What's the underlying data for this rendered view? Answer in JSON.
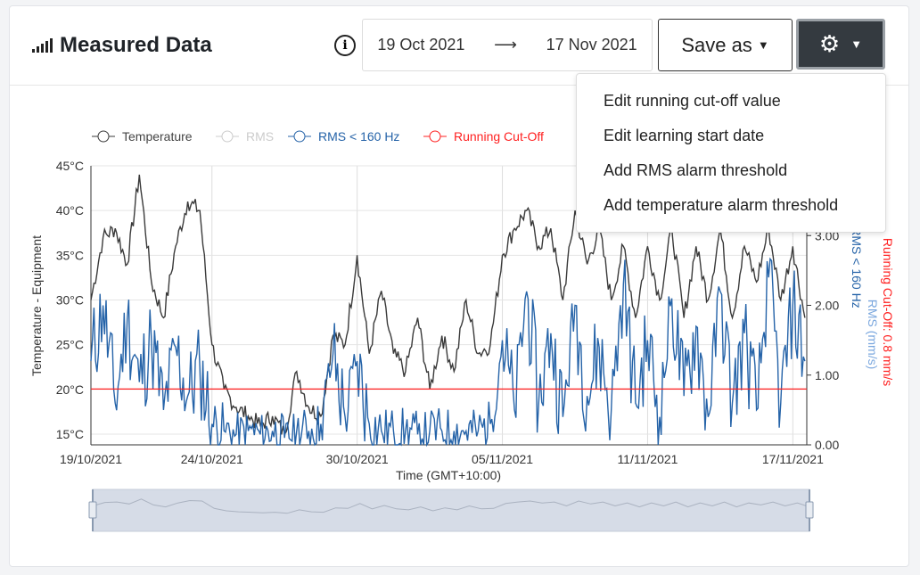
{
  "header": {
    "title": "Measured Data",
    "icon": "signal-bars-icon",
    "info_icon": "info-icon",
    "date_from": "19 Oct 2021",
    "arrow": "⟶",
    "date_to": "17 Nov 2021",
    "save_as": "Save as",
    "settings_icon": "gear-icon"
  },
  "menu": {
    "items": [
      "Edit running cut-off value",
      "Edit learning start date",
      "Add RMS alarm threshold",
      "Add temperature alarm threshold"
    ]
  },
  "colors": {
    "temperature": "#3a3a3a",
    "rms": "#cccccc",
    "rms160": "#2563a8",
    "cutoff": "#ff2020",
    "rms_axis": "#7aa7de"
  },
  "chart_data": {
    "type": "line",
    "legend": [
      "Temperature",
      "RMS",
      "RMS < 160 Hz",
      "Running Cut-Off"
    ],
    "legend_position": "top",
    "xlabel": "Time (GMT+10:00)",
    "x_ticks": [
      "19/10/2021",
      "24/10/2021",
      "30/10/2021",
      "05/11/2021",
      "11/11/2021",
      "17/11/2021"
    ],
    "ylabel_left": "Temperature - Equipment",
    "y_ticks_left": [
      "15°C",
      "20°C",
      "25°C",
      "30°C",
      "35°C",
      "40°C",
      "45°C"
    ],
    "ylim_left": [
      13.8,
      45
    ],
    "ylabel_right": [
      "RMS < 160 Hz",
      "RMS (mm/s)",
      "Running Cut-Off: 0.8 mm/s"
    ],
    "y_ticks_right": [
      "0.00",
      "1.00",
      "2.00",
      "3.00"
    ],
    "ylim_right": [
      0,
      4
    ],
    "grid": true,
    "cutoff": 0.8,
    "temperature": [
      [
        "2021-10-19",
        30
      ],
      [
        "2021-10-19T12",
        37
      ],
      [
        "2021-10-20",
        38
      ],
      [
        "2021-10-20T12",
        34
      ],
      [
        "2021-10-21",
        44
      ],
      [
        "2021-10-21T12",
        32
      ],
      [
        "2021-10-22",
        28
      ],
      [
        "2021-10-22T12",
        36
      ],
      [
        "2021-10-23",
        41
      ],
      [
        "2021-10-23T12",
        40
      ],
      [
        "2021-10-24",
        25
      ],
      [
        "2021-10-24T12",
        20
      ],
      [
        "2021-10-25",
        18
      ],
      [
        "2021-10-25T12",
        17
      ],
      [
        "2021-10-26",
        16
      ],
      [
        "2021-10-26T12",
        17
      ],
      [
        "2021-10-27",
        15
      ],
      [
        "2021-10-27T12",
        22
      ],
      [
        "2021-10-28",
        18
      ],
      [
        "2021-10-28T12",
        17
      ],
      [
        "2021-10-29",
        26
      ],
      [
        "2021-10-29T12",
        25
      ],
      [
        "2021-10-30",
        35
      ],
      [
        "2021-10-30T12",
        24
      ],
      [
        "2021-10-31",
        31
      ],
      [
        "2021-10-31T12",
        24
      ],
      [
        "2021-11-01",
        22
      ],
      [
        "2021-11-01T12",
        28
      ],
      [
        "2021-11-02",
        20
      ],
      [
        "2021-11-02T12",
        26
      ],
      [
        "2021-11-03",
        22
      ],
      [
        "2021-11-03T12",
        30
      ],
      [
        "2021-11-04",
        24
      ],
      [
        "2021-11-04T12",
        25
      ],
      [
        "2021-11-05",
        35
      ],
      [
        "2021-11-05T12",
        38
      ],
      [
        "2021-11-06",
        40
      ],
      [
        "2021-11-06T12",
        36
      ],
      [
        "2021-11-07",
        38
      ],
      [
        "2021-11-07T12",
        30
      ],
      [
        "2021-11-08",
        40
      ],
      [
        "2021-11-08T12",
        34
      ],
      [
        "2021-11-09",
        38
      ],
      [
        "2021-11-09T12",
        30
      ],
      [
        "2021-11-10",
        36
      ],
      [
        "2021-11-10T12",
        28
      ],
      [
        "2021-11-11",
        36
      ],
      [
        "2021-11-11T12",
        30
      ],
      [
        "2021-11-12",
        38
      ],
      [
        "2021-11-12T12",
        28
      ],
      [
        "2021-11-13",
        36
      ],
      [
        "2021-11-13T12",
        30
      ],
      [
        "2021-11-14",
        38
      ],
      [
        "2021-11-14T12",
        28
      ],
      [
        "2021-11-15",
        36
      ],
      [
        "2021-11-15T12",
        32
      ],
      [
        "2021-11-16",
        38
      ],
      [
        "2021-11-16T12",
        30
      ],
      [
        "2021-11-17",
        36
      ],
      [
        "2021-11-17T12",
        28
      ]
    ],
    "rms_lt_160hz": [
      [
        "2021-10-19",
        1.2
      ],
      [
        "2021-10-19T12",
        2.0
      ],
      [
        "2021-10-20",
        0.6
      ],
      [
        "2021-10-20T12",
        1.8
      ],
      [
        "2021-10-21",
        0.9
      ],
      [
        "2021-10-21T12",
        1.5
      ],
      [
        "2021-10-22",
        0.5
      ],
      [
        "2021-10-22T12",
        1.4
      ],
      [
        "2021-10-23",
        0.7
      ],
      [
        "2021-10-23T12",
        1.1
      ],
      [
        "2021-10-24",
        0.3
      ],
      [
        "2021-10-24T12",
        0.2
      ],
      [
        "2021-10-25",
        0.15
      ],
      [
        "2021-10-25T12",
        0.2
      ],
      [
        "2021-10-26",
        0.15
      ],
      [
        "2021-10-26T12",
        0.2
      ],
      [
        "2021-10-27",
        0.1
      ],
      [
        "2021-10-27T12",
        0.2
      ],
      [
        "2021-10-28",
        0.2
      ],
      [
        "2021-10-28T12",
        0.3
      ],
      [
        "2021-10-29",
        1.3
      ],
      [
        "2021-10-29T12",
        0.4
      ],
      [
        "2021-10-30",
        1.2
      ],
      [
        "2021-10-30T12",
        0.3
      ],
      [
        "2021-10-31",
        0.2
      ],
      [
        "2021-10-31T12",
        0.2
      ],
      [
        "2021-11-01",
        0.2
      ],
      [
        "2021-11-01T12",
        0.15
      ],
      [
        "2021-11-02",
        0.2
      ],
      [
        "2021-11-02T12",
        0.2
      ],
      [
        "2021-11-03",
        0.2
      ],
      [
        "2021-11-03T12",
        0.2
      ],
      [
        "2021-11-04",
        0.2
      ],
      [
        "2021-11-04T12",
        0.3
      ],
      [
        "2021-11-05",
        1.5
      ],
      [
        "2021-11-05T12",
        0.5
      ],
      [
        "2021-11-06",
        2.2
      ],
      [
        "2021-11-06T12",
        0.6
      ],
      [
        "2021-11-07",
        1.6
      ],
      [
        "2021-11-07T12",
        0.4
      ],
      [
        "2021-11-08",
        2.0
      ],
      [
        "2021-11-08T12",
        0.7
      ],
      [
        "2021-11-09",
        1.4
      ],
      [
        "2021-11-09T12",
        0.5
      ],
      [
        "2021-11-10",
        2.3
      ],
      [
        "2021-11-10T12",
        0.6
      ],
      [
        "2021-11-11",
        1.5
      ],
      [
        "2021-11-11T12",
        0.4
      ],
      [
        "2021-11-12",
        2.1
      ],
      [
        "2021-11-12T12",
        0.7
      ],
      [
        "2021-11-13",
        1.7
      ],
      [
        "2021-11-13T12",
        0.4
      ],
      [
        "2021-11-14",
        2.2
      ],
      [
        "2021-11-14T12",
        0.6
      ],
      [
        "2021-11-15",
        1.6
      ],
      [
        "2021-11-15T12",
        0.5
      ],
      [
        "2021-11-16",
        2.4
      ],
      [
        "2021-11-16T12",
        0.6
      ],
      [
        "2021-11-17",
        2.0
      ],
      [
        "2021-11-17T12",
        1.2
      ]
    ]
  }
}
